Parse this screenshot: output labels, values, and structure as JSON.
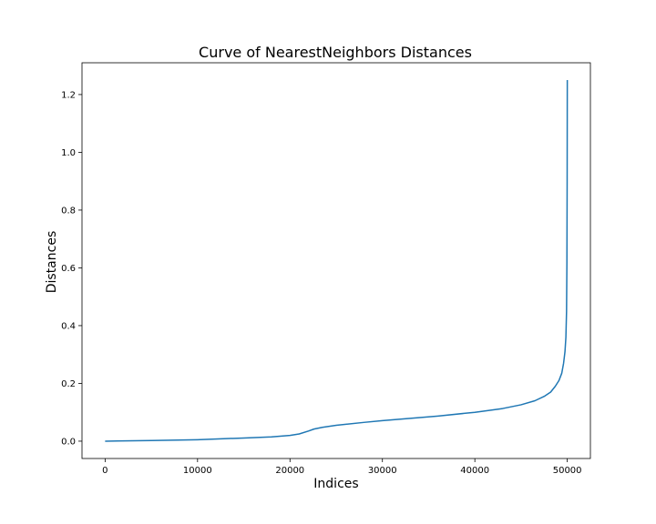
{
  "chart_data": {
    "type": "line",
    "title": "Curve of NearestNeighbors Distances",
    "xlabel": "Indices",
    "ylabel": "Distances",
    "xlim": [
      -2500,
      52500
    ],
    "ylim": [
      -0.06,
      1.31
    ],
    "xticks": [
      0,
      10000,
      20000,
      30000,
      40000,
      50000
    ],
    "yticks": [
      0.0,
      0.2,
      0.4,
      0.6,
      0.8,
      1.0,
      1.2
    ],
    "xtick_labels": [
      "0",
      "10000",
      "20000",
      "30000",
      "40000",
      "50000"
    ],
    "ytick_labels": [
      "0.0",
      "0.2",
      "0.4",
      "0.6",
      "0.8",
      "1.0",
      "1.2"
    ],
    "grid": false,
    "series": [
      {
        "color": "#1f77b4",
        "x": [
          0,
          5000,
          10000,
          15000,
          18000,
          20000,
          21000,
          22000,
          22600,
          23500,
          25000,
          28000,
          30000,
          33000,
          36000,
          40000,
          43000,
          45000,
          46500,
          47500,
          48200,
          48700,
          49100,
          49400,
          49600,
          49750,
          49850,
          49920,
          49960,
          49985,
          50000
        ],
        "y": [
          0.0,
          0.002,
          0.005,
          0.011,
          0.015,
          0.02,
          0.025,
          0.035,
          0.042,
          0.048,
          0.055,
          0.065,
          0.071,
          0.079,
          0.087,
          0.1,
          0.113,
          0.126,
          0.14,
          0.155,
          0.17,
          0.19,
          0.21,
          0.235,
          0.27,
          0.31,
          0.36,
          0.45,
          0.62,
          0.9,
          1.25
        ]
      }
    ]
  }
}
